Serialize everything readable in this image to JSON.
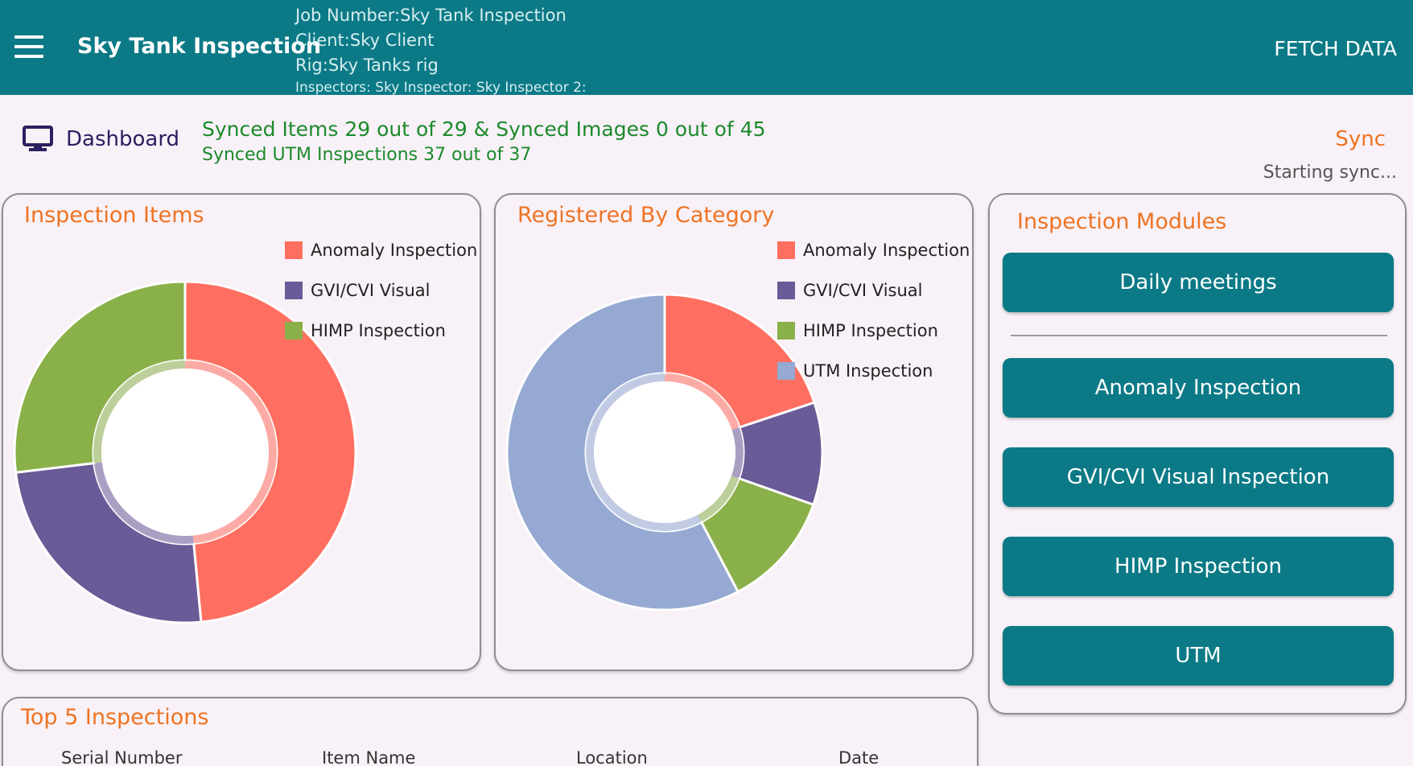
{
  "appbar": {
    "title": "Sky Tank Inspection",
    "job_number": "Job Number:Sky Tank Inspection",
    "client": "Client:Sky Client",
    "rig": "Rig:Sky Tanks rig",
    "inspectors": "Inspectors:  Sky Inspector: Sky Inspector 2:",
    "fetch_label": "FETCH DATA",
    "menu_icon": "hamburger-menu-icon"
  },
  "subheader": {
    "dashboard_label": "Dashboard",
    "dashboard_icon": "monitor-icon",
    "sync_line1": "Synced Items 29 out of 29 & Synced Images 0 out of 45",
    "sync_line2": "Synced UTM Inspections  37 out of 37",
    "sync_button": "Sync",
    "sync_message": "Starting sync..."
  },
  "colors": {
    "primary": "#0b7a86",
    "accent": "#ee7322",
    "success": "#1b8a2a",
    "anomaly": "#ff6f61",
    "gvi": "#6a5a97",
    "himp": "#8ab04a",
    "utm": "#95a9d2"
  },
  "chart_data": [
    {
      "type": "pie",
      "variant": "donut",
      "title": "Inspection Items",
      "legend_position": "top-right",
      "series": [
        {
          "name": "Anomaly Inspection",
          "value": 48.5,
          "color": "#ff6f61"
        },
        {
          "name": "GVI/CVI Visual",
          "value": 24.6,
          "color": "#6a5a97"
        },
        {
          "name": "HIMP Inspection",
          "value": 26.9,
          "color": "#8ab04a"
        }
      ]
    },
    {
      "type": "pie",
      "variant": "donut",
      "title": "Registered By Category",
      "legend_position": "top-right",
      "series": [
        {
          "name": "Anomaly Inspection",
          "value": 19.9,
          "color": "#ff6f61"
        },
        {
          "name": "GVI/CVI Visual",
          "value": 10.5,
          "color": "#6a5a97"
        },
        {
          "name": "HIMP Inspection",
          "value": 11.9,
          "color": "#8ab04a"
        },
        {
          "name": "UTM Inspection",
          "value": 57.7,
          "color": "#95a9d2"
        }
      ]
    }
  ],
  "modules": {
    "title": "Inspection Modules",
    "buttons": [
      "Daily meetings",
      "Anomaly Inspection",
      "GVI/CVI Visual Inspection",
      "HIMP Inspection",
      "UTM"
    ]
  },
  "top5": {
    "title": "Top 5 Inspections",
    "columns": [
      "Serial Number",
      "Item Name",
      "Location",
      "Date"
    ]
  }
}
